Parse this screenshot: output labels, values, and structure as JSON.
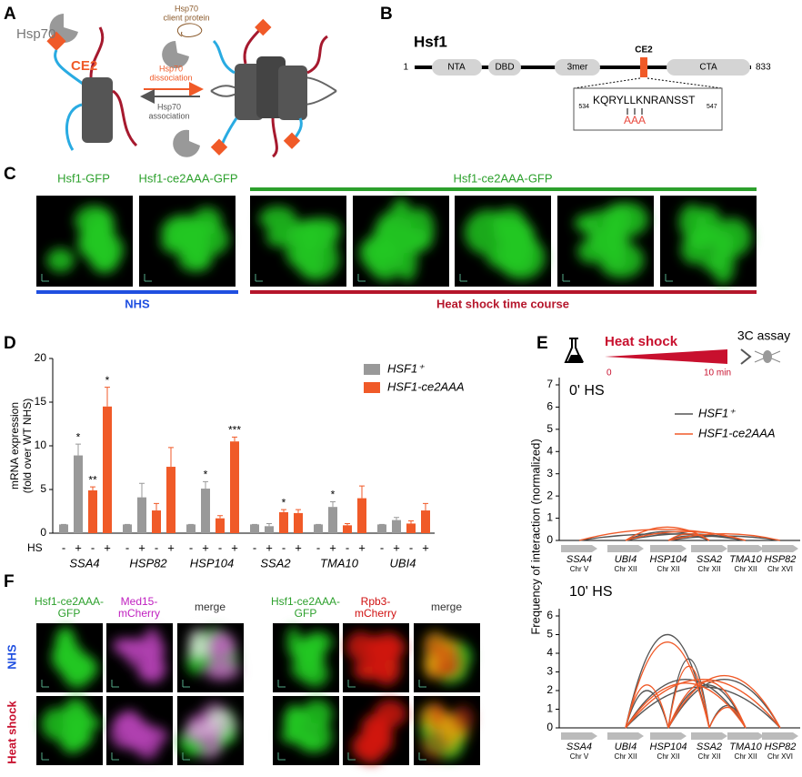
{
  "panels": {
    "A": {
      "label": "A",
      "hsp70": "Hsp70",
      "ce2": "CE2",
      "client": [
        "Hsp70",
        "client protein"
      ],
      "dissociation": [
        "Hsp70",
        "dissociation"
      ],
      "association": [
        "Hsp70",
        "association"
      ]
    },
    "B": {
      "label": "B",
      "title": "Hsf1",
      "start": "1",
      "end": "833",
      "domains": [
        "NTA",
        "DBD",
        "3mer",
        "CTA"
      ],
      "ce2": "CE2",
      "sequence": "KQRYLLKNRANSST",
      "seq_start": "534",
      "seq_end": "547",
      "mutation": "AAA"
    },
    "C": {
      "label": "C",
      "titles": [
        "Hsf1-GFP",
        "Hsf1-ce2AAA-GFP",
        "Hsf1-ce2AAA-GFP"
      ],
      "nhs": "NHS",
      "heat_shock": "Heat shock time course"
    },
    "D": {
      "label": "D"
    },
    "E": {
      "label": "E",
      "heat_shock": "Heat shock",
      "start": "0",
      "end": "10 min",
      "assay": "3C assay",
      "ylabel": "Frequency of interaction (normalized)"
    },
    "F": {
      "label": "F",
      "columns": [
        [
          "Hsf1-ce2AAA-",
          "GFP"
        ],
        [
          "Med15-",
          "mCherry"
        ],
        [
          "merge"
        ],
        [
          "Hsf1-ce2AAA-",
          "GFP"
        ],
        [
          "Rpb3-",
          "mCherry"
        ],
        [
          "merge"
        ]
      ],
      "rows": [
        "NHS",
        "Heat shock"
      ]
    }
  },
  "chart_data": [
    {
      "type": "bar",
      "ylabel": [
        "mRNA expression",
        "(fold over WT NHS)"
      ],
      "xlabel": "HS",
      "conditions": [
        "-",
        "+"
      ],
      "categories": [
        "SSA4",
        "HSP82",
        "HSP104",
        "SSA2",
        "TMA10",
        "UBI4"
      ],
      "ylim": [
        0,
        20
      ],
      "yticks": [
        0,
        5,
        10,
        15,
        20
      ],
      "series": [
        {
          "name": "HSF1⁺",
          "color": "#999999",
          "values": [
            [
              1,
              8.9
            ],
            [
              1,
              4.1
            ],
            [
              1,
              5.1
            ],
            [
              1,
              0.8
            ],
            [
              1,
              3.0
            ],
            [
              1,
              1.5
            ]
          ],
          "errors": [
            [
              0,
              1.3
            ],
            [
              0,
              1.6
            ],
            [
              0,
              0.8
            ],
            [
              0,
              0.3
            ],
            [
              0,
              0.6
            ],
            [
              0,
              0.3
            ]
          ],
          "annotations": [
            [
              null,
              "*"
            ],
            [
              null,
              null
            ],
            [
              null,
              "*"
            ],
            [
              null,
              null
            ],
            [
              null,
              "*"
            ],
            [
              null,
              null
            ]
          ]
        },
        {
          "name": "HSF1-ce2AAA",
          "color": "#f05a28",
          "values": [
            [
              4.9,
              14.5
            ],
            [
              2.6,
              7.6
            ],
            [
              1.7,
              10.5
            ],
            [
              2.4,
              2.3
            ],
            [
              0.9,
              4.0
            ],
            [
              1.1,
              2.6
            ]
          ],
          "errors": [
            [
              0.4,
              2.2
            ],
            [
              0.8,
              2.2
            ],
            [
              0.3,
              0.5
            ],
            [
              0.3,
              0.4
            ],
            [
              0.2,
              1.4
            ],
            [
              0.3,
              0.8
            ]
          ],
          "annotations": [
            [
              "**",
              "*"
            ],
            [
              null,
              null
            ],
            [
              null,
              "***"
            ],
            [
              "*",
              null
            ],
            [
              null,
              null
            ],
            [
              null,
              null
            ]
          ]
        }
      ]
    },
    {
      "type": "arc",
      "title": "0' HS",
      "loci": [
        "SSA4",
        "UBI4",
        "HSP104",
        "SSA2",
        "TMA10",
        "HSP82"
      ],
      "chromosomes": [
        "Chr V",
        "Chr XII",
        "Chr XII",
        "Chr XII",
        "Chr XII",
        "Chr XVI"
      ],
      "ylim": [
        0,
        7
      ],
      "yticks": [
        0,
        1,
        2,
        3,
        4,
        5,
        6,
        7
      ],
      "pairs": [
        [
          "UBI4",
          "SSA2"
        ],
        [
          "SSA4",
          "TMA10"
        ],
        [
          "UBI4",
          "TMA10"
        ],
        [
          "HSP104",
          "SSA2"
        ],
        [
          "HSP104",
          "HSP82"
        ]
      ],
      "series": [
        {
          "name": "HSF1⁺",
          "color": "#555555",
          "values": [
            0.4,
            0.3,
            0.3,
            0.2,
            0.2
          ]
        },
        {
          "name": "HSF1-ce2AAA",
          "color": "#f05a28",
          "values": [
            0.6,
            0.5,
            0.4,
            0.3,
            0.3
          ]
        }
      ]
    },
    {
      "type": "arc",
      "title": "10' HS",
      "loci": [
        "SSA4",
        "UBI4",
        "HSP104",
        "SSA2",
        "TMA10",
        "HSP82"
      ],
      "chromosomes": [
        "Chr V",
        "Chr XII",
        "Chr XII",
        "Chr XII",
        "Chr XII",
        "Chr XVI"
      ],
      "ylim": [
        0,
        6
      ],
      "yticks": [
        0,
        1,
        2,
        3,
        4,
        5,
        6
      ],
      "pairs": [
        [
          "UBI4",
          "SSA2"
        ],
        [
          "HSP104",
          "SSA2"
        ],
        [
          "UBI4",
          "TMA10"
        ],
        [
          "HSP104",
          "HSP82"
        ],
        [
          "UBI4",
          "HSP104"
        ],
        [
          "SSA2",
          "TMA10"
        ],
        [
          "UBI4",
          "HSP82"
        ],
        [
          "HSP104",
          "TMA10"
        ]
      ],
      "series": [
        {
          "color": "#555555",
          "values": [
            5.0,
            3.7,
            2.6,
            2.6,
            2.0,
            1.2,
            2.2,
            2.3
          ]
        },
        {
          "color": "#f05a28",
          "values": [
            4.6,
            3.3,
            2.4,
            2.8,
            2.3,
            1.1,
            2.6,
            2.5
          ]
        }
      ]
    }
  ]
}
